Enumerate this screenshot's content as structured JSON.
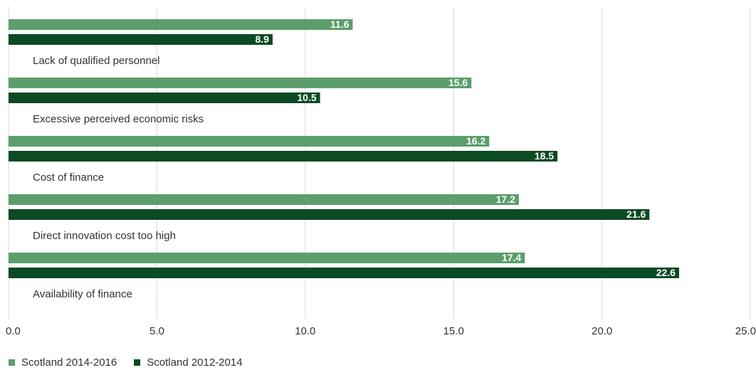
{
  "chart_data": {
    "type": "bar",
    "orientation": "horizontal",
    "categories": [
      "Lack of qualified personnel",
      "Excessive perceived economic risks",
      "Cost of finance",
      "Direct innovation cost too high",
      "Availability of finance"
    ],
    "series": [
      {
        "name": "Scotland 2014-2016",
        "color": "#5b9e6b",
        "values": [
          11.6,
          15.6,
          16.2,
          17.2,
          17.4
        ],
        "labels": [
          "11.6",
          "15.6",
          "16.2",
          "17.2",
          "17.4"
        ]
      },
      {
        "name": "Scotland 2012-2014",
        "color": "#0b4a23",
        "values": [
          8.9,
          10.5,
          18.5,
          21.6,
          22.6
        ],
        "labels": [
          "8.9",
          "10.5",
          "18.5",
          "21.6",
          "22.6"
        ]
      }
    ],
    "xlim": [
      0,
      25
    ],
    "xticks": [
      "0.0",
      "5.0",
      "10.0",
      "15.0",
      "20.0",
      "25.0"
    ],
    "grid": true,
    "legend_position": "bottom-left",
    "data_labels": "inside-end"
  }
}
